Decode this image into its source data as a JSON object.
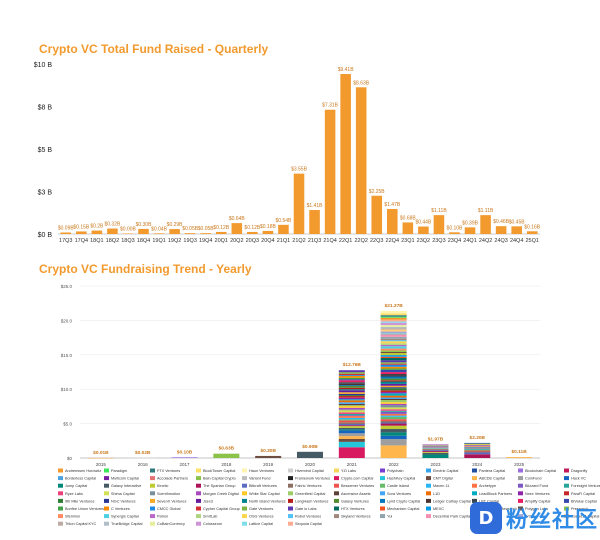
{
  "chart_data": [
    {
      "type": "bar",
      "title": "Crypto VC Total Fund Raised - Quarterly",
      "xlabel": "",
      "ylabel": "",
      "ylim": [
        0,
        10
      ],
      "yticks": [
        "$0 B",
        "$3 B",
        "$5 B",
        "$8 B",
        "$10 B"
      ],
      "ytick_values": [
        0,
        2.5,
        5,
        7.5,
        10
      ],
      "color": "#f29a2e",
      "grid": false,
      "categories": [
        "17Q3",
        "17Q4",
        "18Q1",
        "18Q2",
        "18Q3",
        "18Q4",
        "19Q1",
        "19Q2",
        "19Q3",
        "19Q4",
        "20Q1",
        "20Q2",
        "20Q3",
        "20Q4",
        "21Q1",
        "21Q2",
        "21Q3",
        "21Q4",
        "22Q1",
        "22Q2",
        "22Q3",
        "22Q4",
        "23Q1",
        "23Q2",
        "23Q3",
        "23Q4",
        "24Q1",
        "24Q2",
        "24Q3",
        "24Q4",
        "25Q1"
      ],
      "values": [
        0.09,
        0.15,
        0.2,
        0.32,
        0.0,
        0.3,
        0.04,
        0.29,
        0.05,
        0.05,
        0.12,
        0.64,
        0.12,
        0.18,
        0.54,
        3.55,
        1.41,
        7.31,
        9.41,
        8.63,
        2.25,
        1.47,
        0.68,
        0.44,
        1.11,
        0.1,
        0.39,
        1.11,
        0.46,
        0.45,
        0.16
      ],
      "value_labels": [
        "$0.09B",
        "$0.15B",
        "$0.2B",
        "$0.32B",
        "$0.00B",
        "$0.30B",
        "$0.04B",
        "$0.29B",
        "$0.05B",
        "$0.05B",
        "$0.12B",
        "$0.64B",
        "$0.12B",
        "$0.18B",
        "$0.54B",
        "$3.55B",
        "$1.41B",
        "$7.31B",
        "$9.41B",
        "$8.63B",
        "$2.25B",
        "$1.47B",
        "$0.68B",
        "$0.44B",
        "$1.11B",
        "$0.10B",
        "$0.39B",
        "$1.11B",
        "$0.46B",
        "$0.45B",
        "$0.16B"
      ]
    },
    {
      "type": "bar",
      "stacked": true,
      "title": "Crypto VC Fundraising Trend - Yearly",
      "xlabel": "",
      "ylabel": "",
      "ylim": [
        0,
        25
      ],
      "yticks": [
        "$0",
        "$5.0",
        "$10.0",
        "$15.0",
        "$20.0",
        "$25.0"
      ],
      "ytick_values": [
        0,
        5,
        10,
        15,
        20,
        25
      ],
      "legend_position": "bottom",
      "categories": [
        "2015",
        "2016",
        "2017",
        "2018",
        "2019",
        "2020",
        "2021",
        "2022",
        "2023",
        "2024",
        "2025"
      ],
      "totals": [
        0.01,
        0.02,
        0.1,
        0.63,
        0.3,
        0.9,
        12.76,
        21.37,
        1.97,
        2.2,
        0.11
      ],
      "total_labels": [
        "$0.01B",
        "$0.02B",
        "$0.10B",
        "$0.63B",
        "$0.30B",
        "$0.90B",
        "$12.76B",
        "$21.37B",
        "$1.97B",
        "$2.20B",
        "$0.11B"
      ],
      "series_names": [
        "Andreessen Horowitz",
        "Paradigm",
        "FTX Ventures",
        "BlockTower Capital",
        "Haun Ventures",
        "Hivemind Capital",
        "YZi Labs",
        "Polychain",
        "Electric Capital",
        "Pantera Capital",
        "Blockchain Capital",
        "Dragonfly",
        "Borderless Capital",
        "Multicoin Capital",
        "Accolade Partners",
        "Bain Capital Crypto",
        "Variant Fund",
        "Framework Ventures",
        "Crypto.com Capital",
        "HashKey Capital",
        "CMT Digital",
        "ABCDE Capital",
        "CoinFund",
        "Hack VC",
        "Jump Capital",
        "Galaxy Interactive",
        "Kinetic",
        "The Spartan Group",
        "Bitkraft Ventures",
        "Fabric Ventures",
        "Bessemer Ventures",
        "Castle Island",
        "Maven 11",
        "Archetype",
        "Blizzard Fund",
        "Foresight Ventures",
        "Ryze Labs",
        "Shima Capital",
        "Scenthmotion",
        "Morgan Creek Digital",
        "White Star Capital",
        "Greenfield Capital",
        "Ascensive Assets",
        "Sora Ventures",
        "L1D",
        "LeadBlock Partners",
        "Nxex Ventures",
        "ParaFi Capital",
        "9th Mile Ventures",
        "NGC Ventures",
        "SevenX Ventures",
        "Jsex3",
        "North Island Ventures",
        "LongHash Ventures",
        "Galaxy Ventures",
        "Lyrid Crypto Capital",
        "Ledger Cathay Capital",
        "LBT Capital",
        "Amplify Capital",
        "BiValue Capital",
        "Bonfire Union Ventures",
        "C Ventures",
        "CMCC Global",
        "Cypher Capital Group",
        "Gate Ventures",
        "Gate io Labs",
        "HTX Ventures",
        "Mechanism Capital",
        "MEXC",
        "Old Fashion Research",
        "Polygon Labs",
        "Presearch",
        "Sfermion",
        "Synergis Capital",
        "Patron",
        "SmrtLab",
        "OSG Ventures",
        "Robot Ventures",
        "Skyland Ventures",
        "Yui",
        "Decentral Park Capital",
        "Tribe Capital",
        "IVC",
        "Round13 Capital",
        "Triton Capital KYC",
        "TrueBridge Capital",
        "CoBalnCurrency",
        "Colosseum",
        "Lattice Capital",
        "Sequoia Capital"
      ],
      "colors": [
        "#f29a2e",
        "#3ee85a",
        "#2f7a7f",
        "#ffe066",
        "#fff3b0",
        "#cfcfcf",
        "#f6d55c",
        "#7a3fd1",
        "#37a3e8",
        "#1f4f9e",
        "#9b6bdf",
        "#c2185b",
        "#4aa3df",
        "#7b1fa2",
        "#e57373",
        "#8bc34a",
        "#bdbdbd",
        "#212121",
        "#d81b60",
        "#26c6da",
        "#6d4c41",
        "#ffb74d",
        "#9e9e9e",
        "#1565c0",
        "#00897b",
        "#455a64",
        "#c0ca33",
        "#ad1457",
        "#5c6bc0",
        "#8d6e63",
        "#ef5350",
        "#66bb6a",
        "#29b6f6",
        "#ff7043",
        "#7e57c2",
        "#26a69a",
        "#ec407a",
        "#d4e157",
        "#78909c",
        "#ab47bc",
        "#ffca28",
        "#9ccc65",
        "#5d4037",
        "#42a5f5",
        "#ef6c00",
        "#00acc1",
        "#8e24aa",
        "#c62828",
        "#2e7d32",
        "#283593",
        "#f9a825",
        "#6a1b9a",
        "#00838f",
        "#b71c1c",
        "#558b2f",
        "#0277bd",
        "#4e342e",
        "#37474f",
        "#e91e63",
        "#3949ab",
        "#43a047",
        "#fb8c00",
        "#1e88e5",
        "#d32f2f",
        "#7cb342",
        "#5e35b1",
        "#00695c",
        "#f4511e",
        "#039be5",
        "#c0ca33",
        "#6d4c41",
        "#8bc34a",
        "#ff8a65",
        "#4dd0e1",
        "#ba68c8",
        "#aed581",
        "#ffd54f",
        "#4fc3f7",
        "#a1887f",
        "#90a4ae",
        "#f48fb1",
        "#80cbc4",
        "#9fa8da",
        "#ffcc80",
        "#bcaaa4",
        "#b0bec5",
        "#e6ee9c",
        "#ce93d8",
        "#80deea",
        "#ffab91"
      ]
    }
  ],
  "watermark": {
    "glyph": "D",
    "text": "粉丝社区"
  }
}
